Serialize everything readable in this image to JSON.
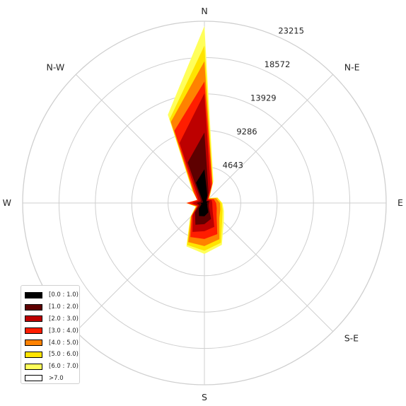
{
  "chart_data": {
    "type": "windrose",
    "directions": [
      "N",
      "NNE",
      "NE",
      "ENE",
      "E",
      "ESE",
      "SE",
      "SSE",
      "S",
      "SSW",
      "SW",
      "WSW",
      "W",
      "WNW",
      "NW",
      "NNW"
    ],
    "direction_labels": [
      "N",
      "N-E",
      "E",
      "S-E",
      "S",
      "S-W",
      "W",
      "N-W"
    ],
    "radial_ticks": [
      4643,
      9286,
      13929,
      18572,
      23215
    ],
    "rmax": 23215,
    "bins": [
      "[0.0 : 1.0)",
      "[1.0 : 2.0)",
      "[2.0 : 3.0)",
      "[3.0 : 4.0)",
      "[4.0 : 5.0)",
      "[5.0 : 6.0)",
      "[6.0 : 7.0)",
      ">7.0"
    ],
    "colors": [
      "#000000",
      "#5e0000",
      "#bd0000",
      "#ff1d00",
      "#ff8200",
      "#ffe400",
      "#ffff5a",
      "#ffffff"
    ],
    "cumulative": [
      [
        4300,
        1000,
        300,
        500,
        300,
        400,
        500,
        1300,
        1700,
        1800,
        1000,
        400,
        500,
        200,
        300,
        2800
      ],
      [
        9000,
        1400,
        400,
        700,
        600,
        600,
        800,
        2200,
        2700,
        3000,
        1700,
        700,
        1000,
        500,
        700,
        5600
      ],
      [
        14000,
        2100,
        600,
        1000,
        1000,
        1100,
        1500,
        3300,
        3600,
        4000,
        2100,
        900,
        1600,
        800,
        1300,
        8300
      ],
      [
        15500,
        2600,
        700,
        1300,
        1500,
        1700,
        2200,
        4300,
        4600,
        4700,
        2300,
        1000,
        2300,
        1000,
        1800,
        10000
      ],
      [
        18100,
        2700,
        800,
        1600,
        2000,
        2200,
        2700,
        5000,
        5500,
        5400,
        2400,
        1100,
        2300,
        1000,
        2000,
        11200
      ],
      [
        20100,
        2800,
        900,
        1800,
        2200,
        2500,
        3200,
        5500,
        6100,
        5800,
        2500,
        1200,
        2300,
        1000,
        2100,
        11600
      ],
      [
        22600,
        3000,
        900,
        1800,
        2300,
        2700,
        3500,
        5800,
        6500,
        6000,
        2600,
        1200,
        2300,
        1000,
        2200,
        12200
      ],
      [
        22600,
        3000,
        900,
        1800,
        2300,
        2700,
        3500,
        5800,
        6500,
        6000,
        2600,
        1200,
        2300,
        1000,
        2200,
        12200
      ]
    ]
  }
}
